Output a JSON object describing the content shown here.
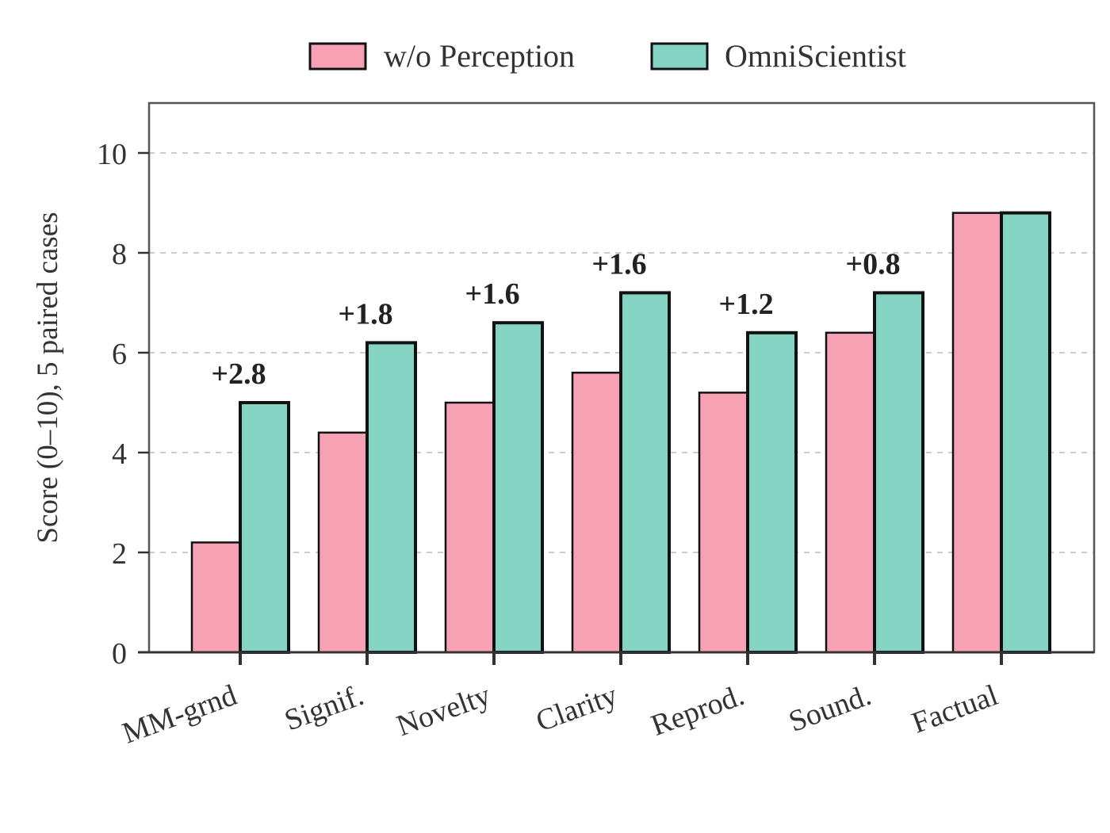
{
  "chart_data": {
    "type": "bar",
    "categories": [
      "MM-grnd",
      "Signif.",
      "Novelty",
      "Clarity",
      "Reprod.",
      "Sound.",
      "Factual"
    ],
    "series": [
      {
        "name": "w/o Perception",
        "values": [
          2.2,
          4.4,
          5.0,
          5.6,
          5.2,
          6.4,
          8.8
        ],
        "color": "#f7a1b5"
      },
      {
        "name": "OmniScientist",
        "values": [
          5.0,
          6.2,
          6.6,
          7.2,
          6.4,
          7.2,
          8.8
        ],
        "color": "#84d3c3"
      }
    ],
    "annotations": [
      "+2.8",
      "+1.8",
      "+1.6",
      "+1.6",
      "+1.2",
      "+0.8",
      ""
    ],
    "ylabel": "Score (0–10), 5 paired cases",
    "xlabel": "",
    "ylim": [
      0,
      11
    ],
    "yticks": [
      0,
      2,
      4,
      6,
      8,
      10
    ],
    "grid": "y-dashed",
    "legend": "top-center",
    "highlight_series": "OmniScientist"
  }
}
